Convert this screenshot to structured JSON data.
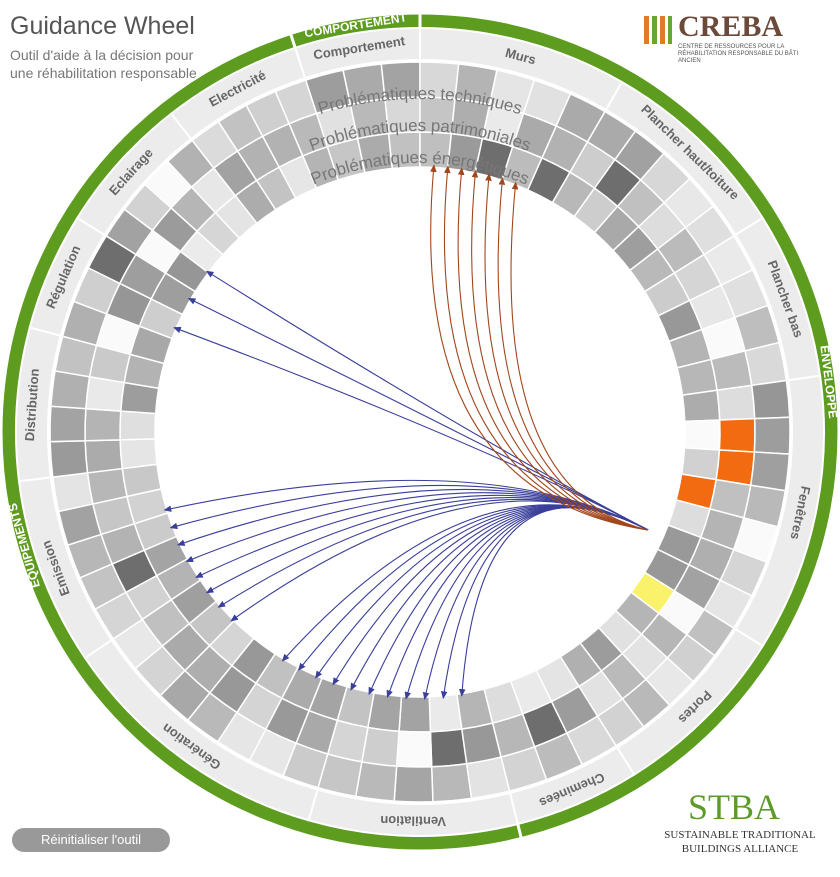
{
  "header": {
    "title": "Guidance Wheel",
    "subtitle": "Outil d'aide à la décision pour une réhabilitation responsable"
  },
  "groups": [
    {
      "label": "COMPORTEMENT"
    },
    {
      "label": "ENVELOPPE"
    },
    {
      "label": "EQUIPEMENTS"
    }
  ],
  "sectors": [
    {
      "label": "Comportement"
    },
    {
      "label": "Murs"
    },
    {
      "label": "Plancher haut/toiture"
    },
    {
      "label": "Plancher bas"
    },
    {
      "label": "Fenêtres"
    },
    {
      "label": "Portes"
    },
    {
      "label": "Cheminées"
    },
    {
      "label": "Ventilation"
    },
    {
      "label": "Génération"
    },
    {
      "label": "Emission"
    },
    {
      "label": "Distribution"
    },
    {
      "label": "Régulation"
    },
    {
      "label": "Eclairage"
    },
    {
      "label": "Electricité"
    }
  ],
  "rings": [
    "Problématiques techniques",
    "Problématiques patrimoniales",
    "Problématiques énergétiques"
  ],
  "button": "Réinitialiser l'outil",
  "logos": {
    "creba": {
      "name": "CREBA",
      "caption": "CENTRE DE RESSOURCES POUR LA RÉHABILITATION RESPONSABLE DU BÂTI ANCIEN"
    },
    "stba": {
      "name": "STBA",
      "caption": "SUSTAINABLE TRADITIONAL BUILDINGS ALLIANCE"
    }
  }
}
